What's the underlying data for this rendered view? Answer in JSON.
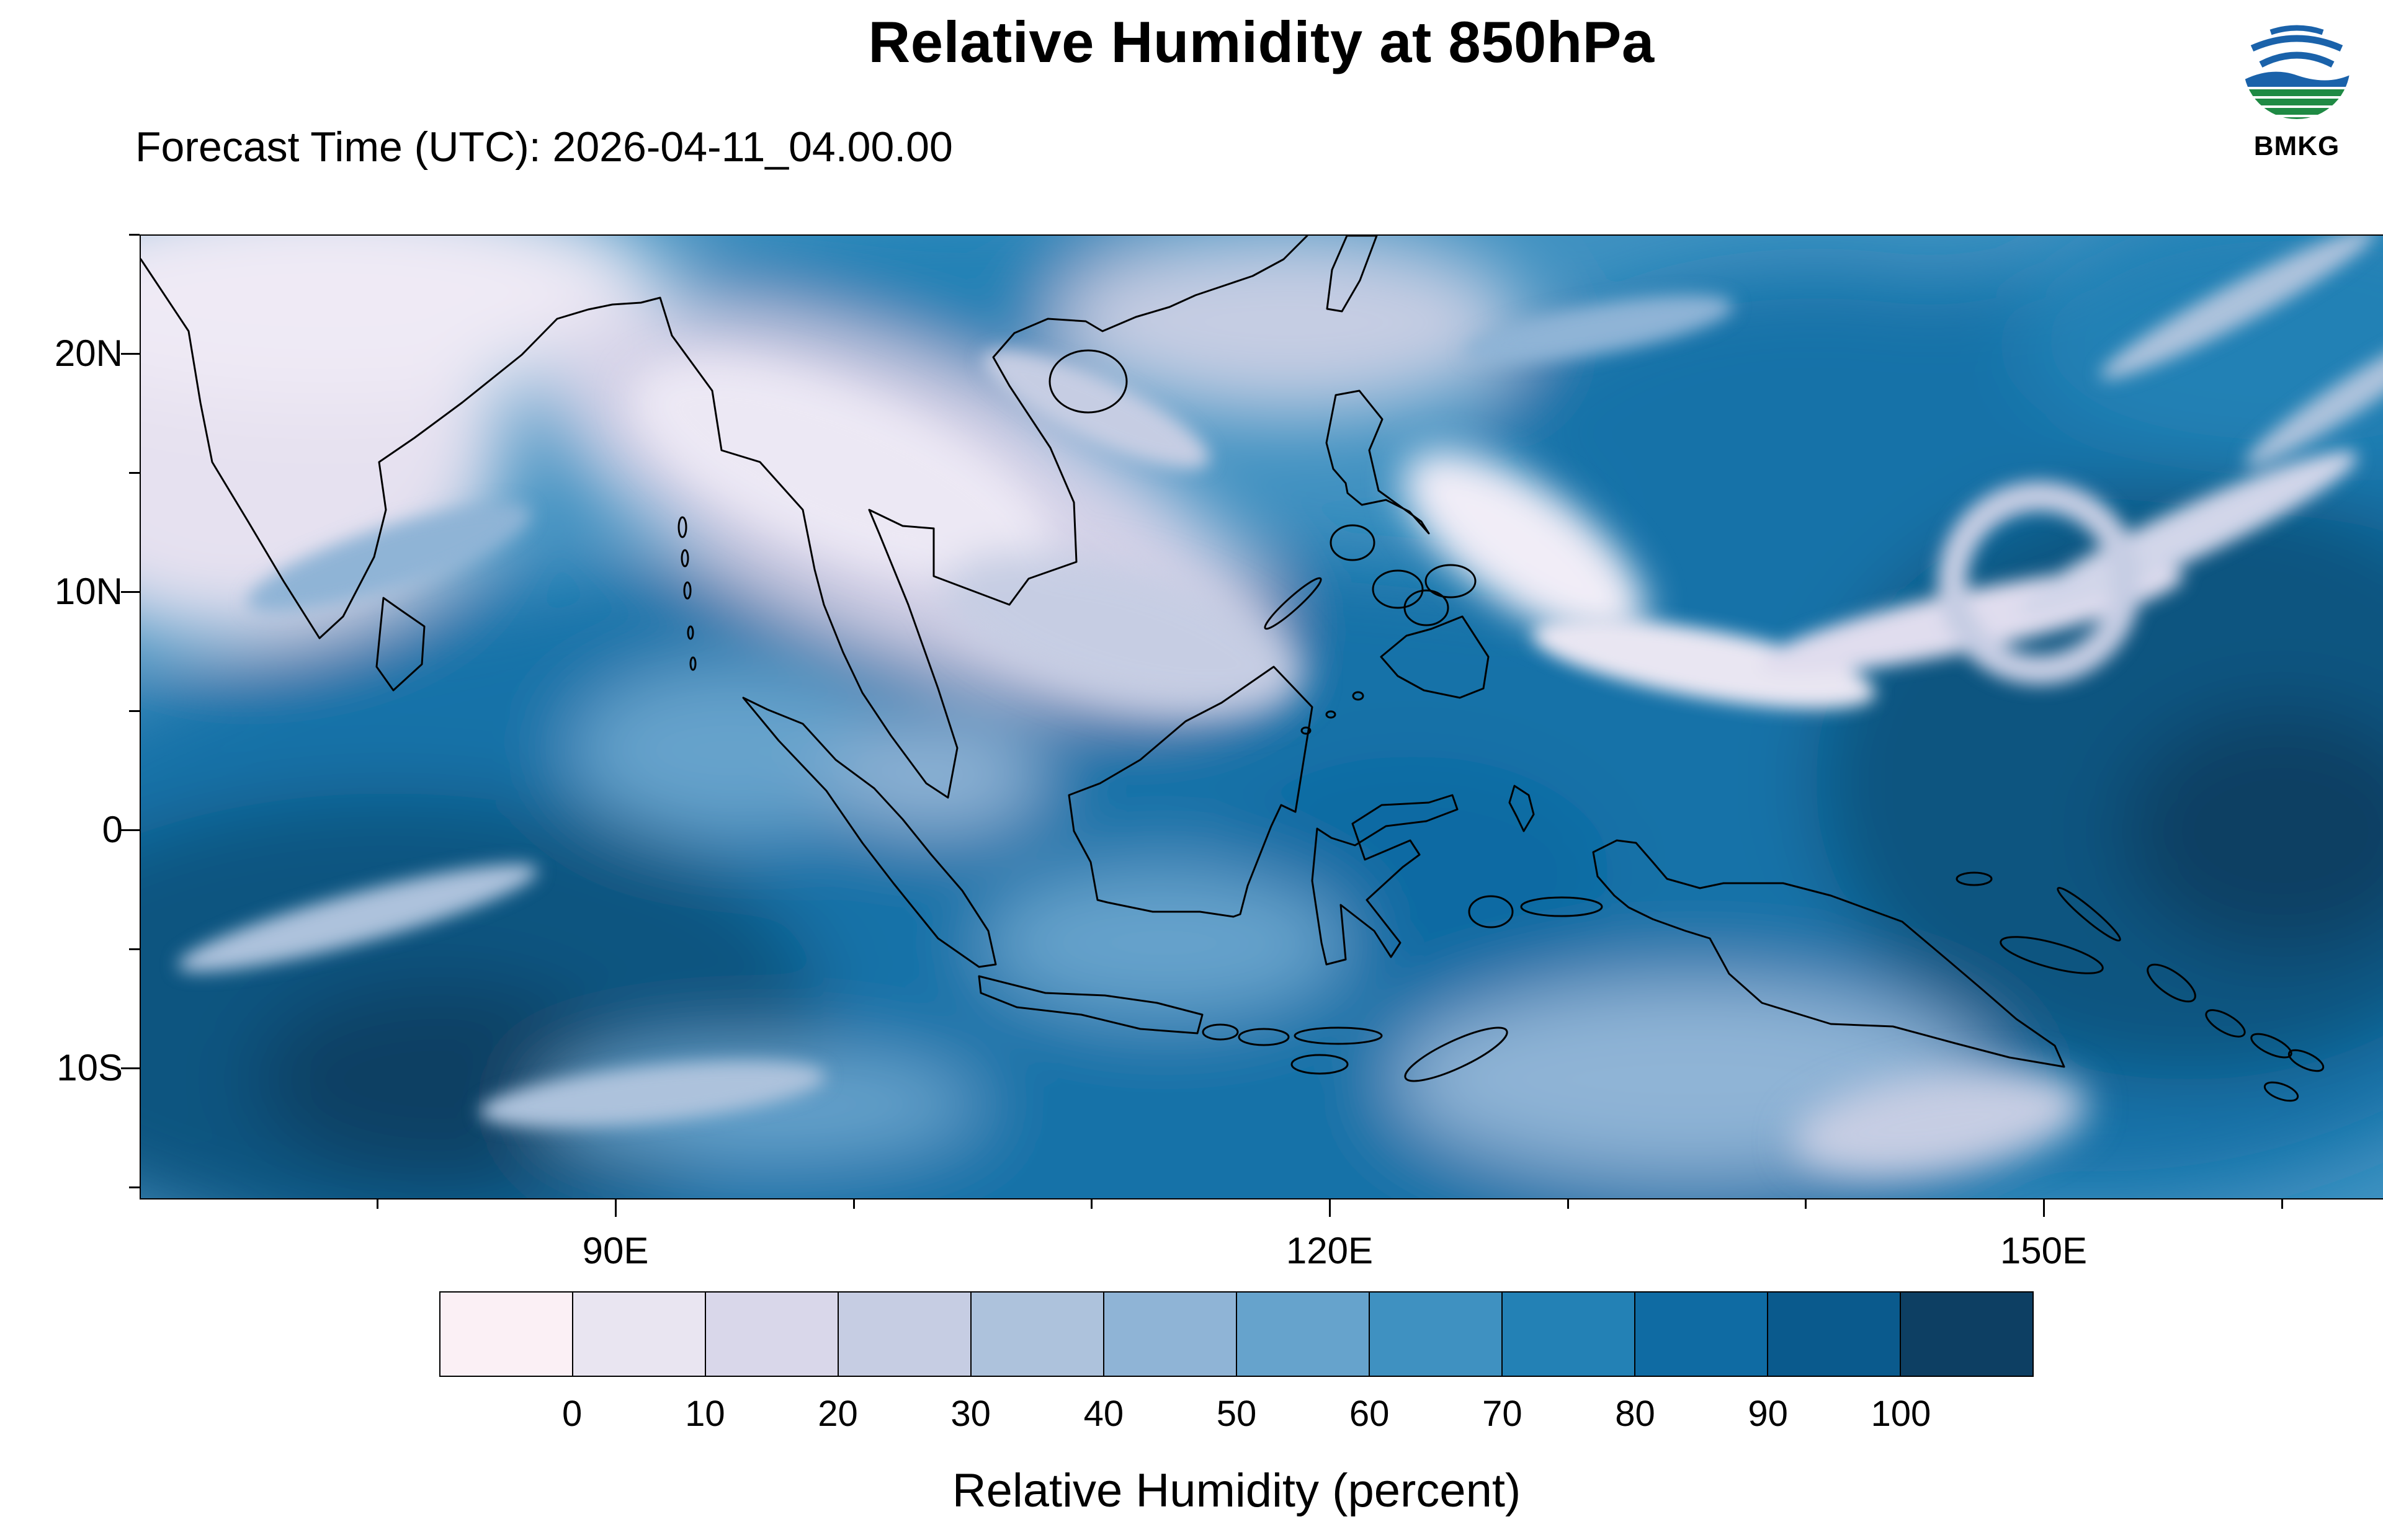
{
  "header": {
    "title": "Relative Humidity at 850hPa",
    "subtitle": "Forecast Time (UTC): 2026-04-11_04.00.00",
    "logo_text": "BMKG"
  },
  "map_axes": {
    "lat_ticks": [
      "20N",
      "10N",
      "0",
      "10S"
    ],
    "lon_ticks": [
      "90E",
      "120E",
      "150E"
    ]
  },
  "colorbar": {
    "tick_labels": [
      "0",
      "10",
      "20",
      "30",
      "40",
      "50",
      "60",
      "70",
      "80",
      "90",
      "100"
    ],
    "colors": [
      "#fbf0f5",
      "#e9e5f1",
      "#d9d7ea",
      "#c6cde3",
      "#adc2dc",
      "#8fb4d6",
      "#66a3cc",
      "#3f91c1",
      "#2381b5",
      "#0f6ba3",
      "#0a5a8d",
      "#0d3f63"
    ],
    "caption": "Relative Humidity (percent)"
  },
  "chart_data": {
    "type": "heatmap",
    "title": "Relative Humidity at 850hPa",
    "forecast_time_utc": "2026-04-11_04.00.00",
    "variable": "Relative Humidity",
    "units": "percent",
    "pressure_level": "850hPa",
    "agency": "BMKG",
    "x_axis": {
      "kind": "longitude",
      "tick_labels": [
        "90E",
        "120E",
        "150E"
      ]
    },
    "y_axis": {
      "kind": "latitude",
      "tick_labels": [
        "20N",
        "10N",
        "0",
        "10S"
      ]
    },
    "colorbar": {
      "label": "Relative Humidity (percent)",
      "levels": [
        0,
        10,
        20,
        30,
        40,
        50,
        60,
        70,
        80,
        90,
        100
      ],
      "colors": [
        "#fbf0f5",
        "#e9e5f1",
        "#d9d7ea",
        "#c6cde3",
        "#adc2dc",
        "#8fb4d6",
        "#66a3cc",
        "#3f91c1",
        "#2381b5",
        "#0f6ba3",
        "#0a5a8d",
        "#0d3f63"
      ],
      "orientation": "horizontal",
      "position": "bottom"
    },
    "legend": "none",
    "grid": "off"
  }
}
